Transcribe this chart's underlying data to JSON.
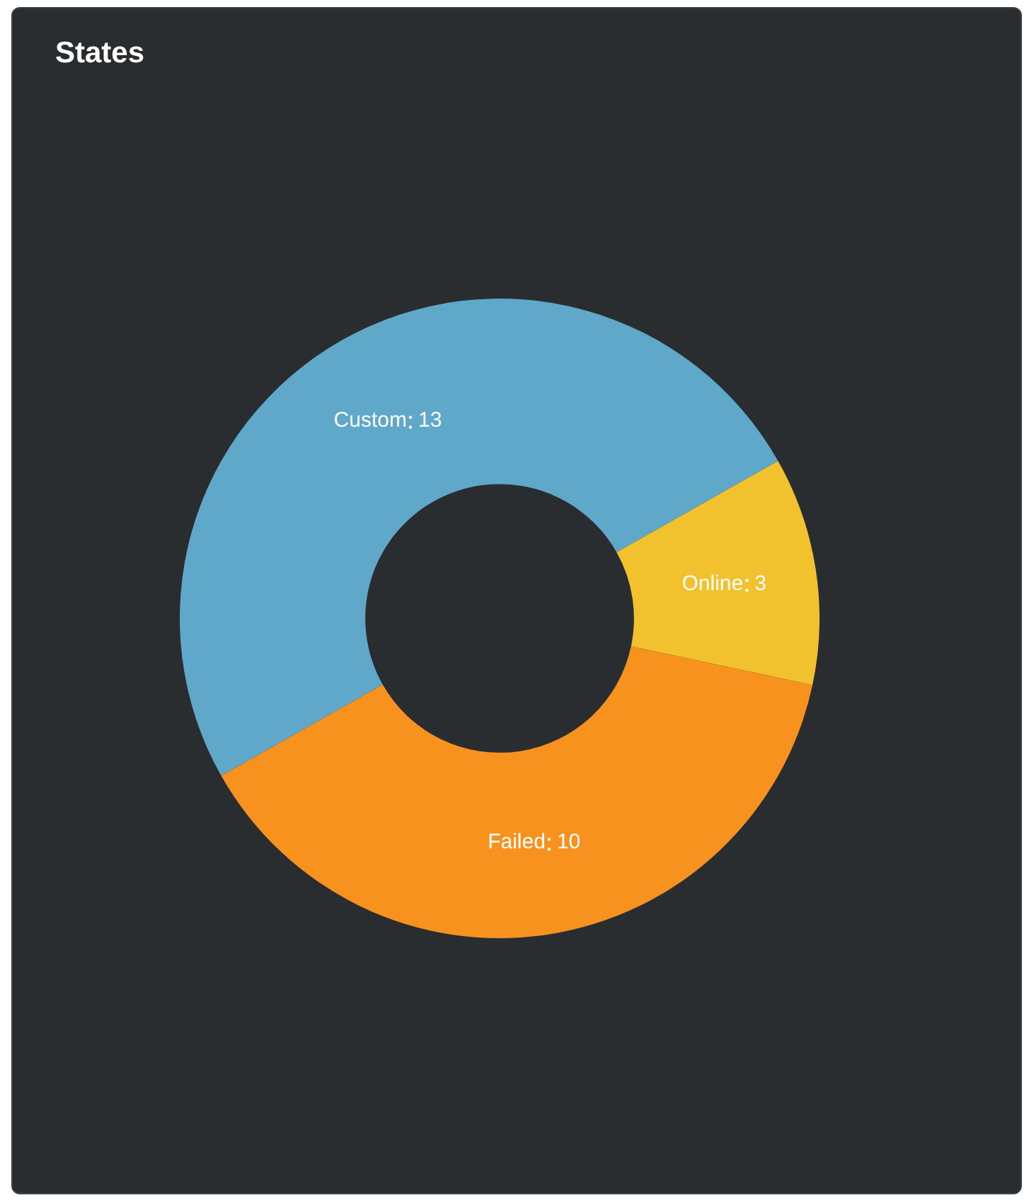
{
  "chart_data": {
    "type": "donut",
    "title": "States",
    "categories": [
      "Custom",
      "Online",
      "Failed"
    ],
    "values": [
      13,
      3,
      10
    ],
    "colors": [
      "#5fa8c9",
      "#f2c12e",
      "#f7921e"
    ],
    "data_labels": true,
    "legend": false
  }
}
